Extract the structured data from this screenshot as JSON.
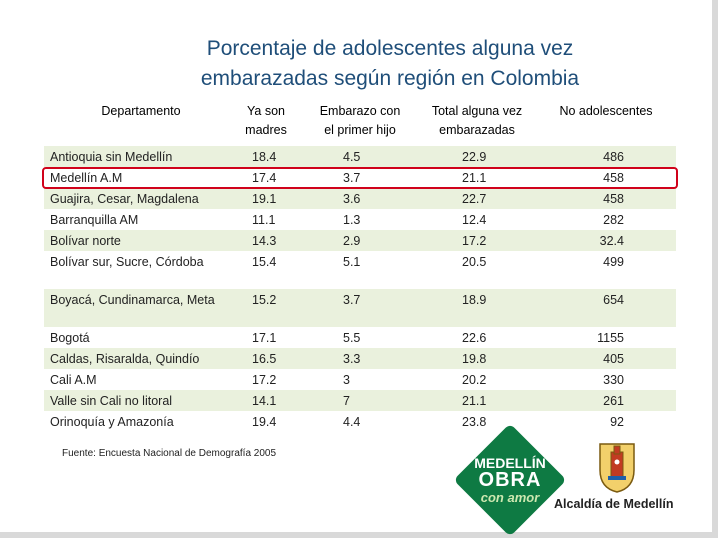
{
  "title": {
    "line1": "Porcentaje de adolescentes alguna vez",
    "line2": "embarazadas según región en Colombia"
  },
  "headers": {
    "departamento": "Departamento",
    "ya_son_1": "Ya son",
    "ya_son_2": "madres",
    "embarazo_1": "Embarazo con",
    "embarazo_2": "el primer hijo",
    "total_1": "Total alguna vez",
    "total_2": "embarazadas",
    "no_adol": "No adolescentes"
  },
  "rows": [
    {
      "dep": "Antioquia sin Medellín",
      "ya": "18.4",
      "emb": "4.5",
      "tot": "22.9",
      "no": "486"
    },
    {
      "dep": "Medellín A.M",
      "ya": "17.4",
      "emb": "3.7",
      "tot": "21.1",
      "no": "458"
    },
    {
      "dep": "Guajira, Cesar, Magdalena",
      "ya": "19.1",
      "emb": "3.6",
      "tot": "22.7",
      "no": "458"
    },
    {
      "dep": "Barranquilla AM",
      "ya": "11.1",
      "emb": "1.3",
      "tot": "12.4",
      "no": "282"
    },
    {
      "dep": "Bolívar norte",
      "ya": "14.3",
      "emb": "2.9",
      "tot": "17.2",
      "no": "32.4"
    },
    {
      "dep": "Bolívar sur, Sucre, Córdoba",
      "ya": "15.4",
      "emb": "5.1",
      "tot": "20.5",
      "no": "499"
    },
    {
      "dep": "Boyacá, Cundinamarca, Meta",
      "ya": "15.2",
      "emb": "3.7",
      "tot": "18.9",
      "no": "654"
    },
    {
      "dep": "Bogotá",
      "ya": "17.1",
      "emb": "5.5",
      "tot": "22.6",
      "no": "1155"
    },
    {
      "dep": "Caldas, Risaralda, Quindío",
      "ya": "16.5",
      "emb": "3.3",
      "tot": "19.8",
      "no": "405"
    },
    {
      "dep": "Cali A.M",
      "ya": "17.2",
      "emb": "3",
      "tot": "20.2",
      "no": "330"
    },
    {
      "dep": "Valle sin Cali no litoral",
      "ya": "14.1",
      "emb": "7",
      "tot": "21.1",
      "no": "261"
    },
    {
      "dep": "Orinoquía y Amazonía",
      "ya": "19.4",
      "emb": "4.4",
      "tot": "23.8",
      "no": "92"
    }
  ],
  "source": "Fuente: Encuesta Nacional de Demografía 2005",
  "logo": {
    "line1": "MEDELLÍN",
    "line2": "OBRA",
    "line3": "con amor",
    "alcaldia": "Alcaldía de Medellín"
  },
  "colors": {
    "title": "#1f4e79",
    "row_shade": "#eaf1dd",
    "highlight": "#d0021b",
    "logo_green": "#0e7a43"
  }
}
